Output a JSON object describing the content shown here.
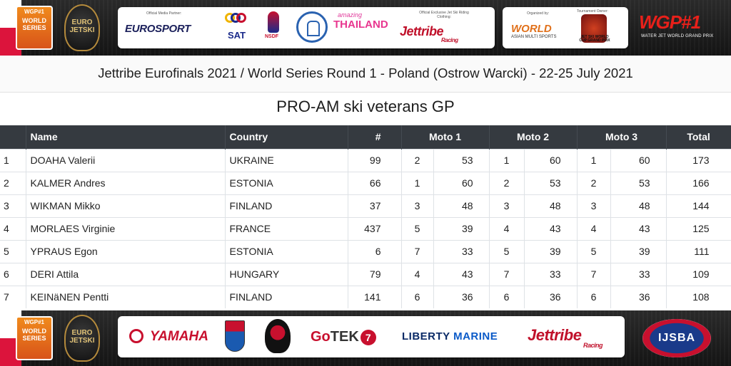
{
  "header": {
    "media_partner_label": "Official Media Partner:",
    "clothing_label": "Official Exclusive Jet Ski Riding Clothing:",
    "organized_by_label": "Organized by:",
    "owner_label": "Tournament Owner:",
    "logos": {
      "world_series": "WORLD SERIES",
      "euro_finals": "EURO JETSKI",
      "eurosport": "EUROSPORT",
      "sat": "SAT",
      "nsdf": "NSDF",
      "amazing": "amazing",
      "thailand": "THAILAND",
      "jettribe": "Jettribe",
      "racing": "Racing",
      "world_org": "WORLD",
      "world_org_sub": "ASIAN MULTI SPORTS",
      "wcgp": "JET SKI WORLD CUP GRAND PRIX",
      "wgp1": "WGP#1",
      "wgp1_sub": "WATER JET WORLD GRAND PRIX"
    }
  },
  "event_title": "Jettribe Eurofinals 2021 / World Series Round 1 - Poland (Ostrow Warcki) - 22-25 July 2021",
  "class_title": "PRO-AM ski veterans GP",
  "table": {
    "headers": {
      "pos": "",
      "name": "Name",
      "country": "Country",
      "number": "#",
      "moto1": "Moto 1",
      "moto2": "Moto 2",
      "moto3": "Moto 3",
      "total": "Total"
    },
    "rows": [
      {
        "pos": "1",
        "name": "DOAHA Valerii",
        "country": "UKRAINE",
        "number": "99",
        "m1_pos": "2",
        "m1_pts": "53",
        "m2_pos": "1",
        "m2_pts": "60",
        "m3_pos": "1",
        "m3_pts": "60",
        "total": "173"
      },
      {
        "pos": "2",
        "name": "KALMER Andres",
        "country": "ESTONIA",
        "number": "66",
        "m1_pos": "1",
        "m1_pts": "60",
        "m2_pos": "2",
        "m2_pts": "53",
        "m3_pos": "2",
        "m3_pts": "53",
        "total": "166"
      },
      {
        "pos": "3",
        "name": "WIKMAN Mikko",
        "country": "FINLAND",
        "number": "37",
        "m1_pos": "3",
        "m1_pts": "48",
        "m2_pos": "3",
        "m2_pts": "48",
        "m3_pos": "3",
        "m3_pts": "48",
        "total": "144"
      },
      {
        "pos": "4",
        "name": "MORLAES Virginie",
        "country": "FRANCE",
        "number": "437",
        "m1_pos": "5",
        "m1_pts": "39",
        "m2_pos": "4",
        "m2_pts": "43",
        "m3_pos": "4",
        "m3_pts": "43",
        "total": "125"
      },
      {
        "pos": "5",
        "name": "YPRAUS Egon",
        "country": "ESTONIA",
        "number": "6",
        "m1_pos": "7",
        "m1_pts": "33",
        "m2_pos": "5",
        "m2_pts": "39",
        "m3_pos": "5",
        "m3_pts": "39",
        "total": "111"
      },
      {
        "pos": "6",
        "name": "DERI Attila",
        "country": "HUNGARY",
        "number": "79",
        "m1_pos": "4",
        "m1_pts": "43",
        "m2_pos": "7",
        "m2_pts": "33",
        "m3_pos": "7",
        "m3_pts": "33",
        "total": "109"
      },
      {
        "pos": "7",
        "name": "KEINäNEN Pentti",
        "country": "FINLAND",
        "number": "141",
        "m1_pos": "6",
        "m1_pts": "36",
        "m2_pos": "6",
        "m2_pts": "36",
        "m3_pos": "6",
        "m3_pts": "36",
        "total": "108"
      }
    ]
  },
  "footer": {
    "logos": {
      "yamaha": "YAMAHA",
      "gotek_go": "Go",
      "gotek_tek": "TEK",
      "gotek_seven": "7",
      "liberty": "LIBERTY",
      "marine": "MARINE",
      "jettribe": "Jettribe",
      "racing": "Racing",
      "ijsba": "IJSBA"
    }
  },
  "colors": {
    "table_header_bg": "#353a40",
    "banner_bg": "#1e1e1e",
    "accent_red": "#c8102e"
  }
}
